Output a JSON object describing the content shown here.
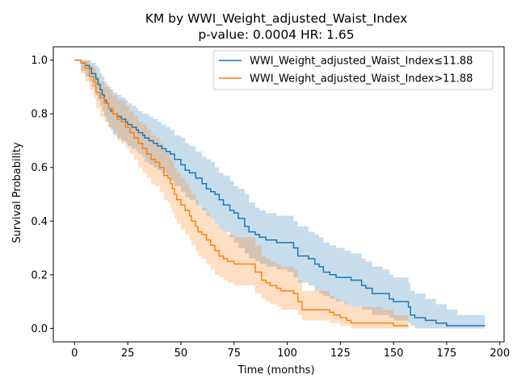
{
  "chart_data": {
    "type": "line",
    "title": "KM by WWI_Weight_adjusted_Waist_Index",
    "subtitle": "p-value: 0.0004  HR: 1.65",
    "xlabel": "Time (months)",
    "ylabel": "Survival Probability",
    "xlim": [
      -10,
      202
    ],
    "ylim": [
      -0.05,
      1.05
    ],
    "xticks": [
      0,
      25,
      50,
      75,
      100,
      125,
      150,
      175,
      200
    ],
    "yticks": [
      0.0,
      0.2,
      0.4,
      0.6,
      0.8,
      1.0
    ],
    "xtick_labels": [
      "0",
      "25",
      "50",
      "75",
      "100",
      "125",
      "150",
      "175",
      "200"
    ],
    "ytick_labels": [
      "0.0",
      "0.2",
      "0.4",
      "0.6",
      "0.8",
      "1.0"
    ],
    "grid": false,
    "legend_position": "top-right",
    "series": [
      {
        "name": "WWI_Weight_adjusted_Waist_Index≤11.88",
        "color": "#1f77b4",
        "step": true,
        "x": [
          0,
          3,
          5,
          7,
          8,
          10,
          11,
          12,
          13,
          14,
          15,
          16,
          17,
          18,
          20,
          22,
          24,
          25,
          27,
          29,
          30,
          32,
          33,
          35,
          37,
          39,
          41,
          43,
          45,
          47,
          50,
          52,
          54,
          57,
          60,
          62,
          64,
          66,
          68,
          70,
          73,
          75,
          77,
          80,
          82,
          85,
          87,
          90,
          93,
          95,
          97,
          100,
          103,
          105,
          107,
          110,
          113,
          115,
          117,
          120,
          123,
          125,
          127,
          130,
          135,
          137,
          140,
          145,
          148,
          150,
          155,
          157,
          158,
          160,
          165,
          170,
          175,
          180,
          185,
          190,
          193
        ],
        "y": [
          1.0,
          0.99,
          0.98,
          0.97,
          0.95,
          0.93,
          0.91,
          0.89,
          0.87,
          0.85,
          0.84,
          0.82,
          0.81,
          0.8,
          0.79,
          0.78,
          0.77,
          0.76,
          0.75,
          0.74,
          0.73,
          0.72,
          0.71,
          0.7,
          0.69,
          0.68,
          0.67,
          0.66,
          0.65,
          0.63,
          0.61,
          0.59,
          0.58,
          0.56,
          0.54,
          0.52,
          0.51,
          0.5,
          0.48,
          0.46,
          0.44,
          0.43,
          0.41,
          0.38,
          0.36,
          0.35,
          0.34,
          0.33,
          0.33,
          0.32,
          0.32,
          0.32,
          0.3,
          0.27,
          0.27,
          0.26,
          0.24,
          0.23,
          0.21,
          0.2,
          0.19,
          0.19,
          0.19,
          0.18,
          0.16,
          0.15,
          0.13,
          0.13,
          0.11,
          0.1,
          0.1,
          0.08,
          0.05,
          0.04,
          0.03,
          0.02,
          0.01,
          0.01,
          0.01,
          0.01,
          0.01
        ],
        "ci_lower": [
          1.0,
          0.96,
          0.94,
          0.92,
          0.9,
          0.87,
          0.85,
          0.83,
          0.81,
          0.79,
          0.77,
          0.75,
          0.74,
          0.72,
          0.71,
          0.7,
          0.69,
          0.68,
          0.67,
          0.66,
          0.65,
          0.64,
          0.62,
          0.61,
          0.6,
          0.59,
          0.58,
          0.57,
          0.55,
          0.53,
          0.51,
          0.49,
          0.48,
          0.46,
          0.44,
          0.42,
          0.41,
          0.39,
          0.37,
          0.36,
          0.34,
          0.32,
          0.3,
          0.28,
          0.26,
          0.25,
          0.24,
          0.23,
          0.23,
          0.22,
          0.22,
          0.21,
          0.19,
          0.17,
          0.17,
          0.16,
          0.14,
          0.13,
          0.12,
          0.11,
          0.1,
          0.1,
          0.09,
          0.08,
          0.07,
          0.07,
          0.05,
          0.05,
          0.04,
          0.03,
          0.03,
          0.02,
          0.01,
          0.0,
          0.0,
          0.0,
          0.0,
          0.0,
          0.0,
          0.0,
          0.0
        ],
        "ci_upper": [
          1.0,
          1.0,
          1.0,
          1.0,
          0.99,
          0.98,
          0.97,
          0.95,
          0.94,
          0.92,
          0.91,
          0.9,
          0.89,
          0.88,
          0.87,
          0.86,
          0.85,
          0.84,
          0.83,
          0.82,
          0.81,
          0.8,
          0.8,
          0.79,
          0.78,
          0.77,
          0.76,
          0.75,
          0.74,
          0.72,
          0.71,
          0.69,
          0.68,
          0.66,
          0.64,
          0.63,
          0.62,
          0.6,
          0.58,
          0.57,
          0.55,
          0.53,
          0.52,
          0.5,
          0.47,
          0.45,
          0.44,
          0.43,
          0.43,
          0.42,
          0.42,
          0.42,
          0.4,
          0.38,
          0.38,
          0.36,
          0.35,
          0.34,
          0.32,
          0.31,
          0.3,
          0.3,
          0.29,
          0.28,
          0.26,
          0.25,
          0.23,
          0.22,
          0.2,
          0.19,
          0.19,
          0.17,
          0.14,
          0.13,
          0.11,
          0.09,
          0.07,
          0.05,
          0.05,
          0.05,
          0.05
        ]
      },
      {
        "name": "WWI_Weight_adjusted_Waist_Index>11.88",
        "color": "#ff7f0e",
        "step": true,
        "x": [
          0,
          3,
          5,
          7,
          9,
          10,
          12,
          14,
          16,
          18,
          20,
          22,
          24,
          26,
          28,
          30,
          32,
          34,
          36,
          38,
          40,
          42,
          44,
          45,
          46,
          47,
          48,
          50,
          52,
          54,
          55,
          57,
          58,
          60,
          62,
          64,
          66,
          68,
          70,
          72,
          75,
          80,
          85,
          88,
          90,
          92,
          95,
          97,
          100,
          103,
          105,
          107,
          110,
          115,
          120,
          122,
          125,
          128,
          130,
          135,
          140,
          145,
          150,
          153,
          157
        ],
        "y": [
          1.0,
          0.99,
          0.97,
          0.94,
          0.92,
          0.88,
          0.86,
          0.84,
          0.82,
          0.8,
          0.78,
          0.77,
          0.75,
          0.73,
          0.71,
          0.69,
          0.67,
          0.65,
          0.63,
          0.62,
          0.6,
          0.57,
          0.56,
          0.54,
          0.52,
          0.5,
          0.48,
          0.46,
          0.44,
          0.42,
          0.4,
          0.38,
          0.36,
          0.35,
          0.33,
          0.31,
          0.29,
          0.27,
          0.26,
          0.25,
          0.24,
          0.24,
          0.21,
          0.18,
          0.17,
          0.16,
          0.15,
          0.14,
          0.14,
          0.13,
          0.1,
          0.07,
          0.07,
          0.07,
          0.06,
          0.05,
          0.04,
          0.03,
          0.02,
          0.02,
          0.02,
          0.02,
          0.01,
          0.01,
          0.01
        ],
        "ci_lower": [
          1.0,
          0.95,
          0.92,
          0.89,
          0.86,
          0.82,
          0.79,
          0.77,
          0.75,
          0.73,
          0.7,
          0.69,
          0.67,
          0.65,
          0.63,
          0.6,
          0.58,
          0.56,
          0.54,
          0.53,
          0.51,
          0.48,
          0.47,
          0.45,
          0.43,
          0.41,
          0.39,
          0.37,
          0.35,
          0.33,
          0.31,
          0.29,
          0.27,
          0.26,
          0.24,
          0.22,
          0.2,
          0.19,
          0.18,
          0.17,
          0.16,
          0.16,
          0.13,
          0.11,
          0.1,
          0.09,
          0.08,
          0.07,
          0.07,
          0.07,
          0.05,
          0.03,
          0.03,
          0.03,
          0.02,
          0.02,
          0.01,
          0.01,
          0.0,
          0.0,
          0.0,
          0.0,
          0.0,
          0.0,
          0.0
        ],
        "ci_upper": [
          1.0,
          1.0,
          1.0,
          0.98,
          0.97,
          0.94,
          0.92,
          0.9,
          0.89,
          0.87,
          0.85,
          0.85,
          0.83,
          0.81,
          0.79,
          0.77,
          0.76,
          0.74,
          0.72,
          0.71,
          0.69,
          0.66,
          0.65,
          0.63,
          0.62,
          0.6,
          0.58,
          0.56,
          0.54,
          0.52,
          0.5,
          0.48,
          0.46,
          0.45,
          0.43,
          0.41,
          0.39,
          0.37,
          0.36,
          0.35,
          0.34,
          0.34,
          0.31,
          0.27,
          0.26,
          0.25,
          0.24,
          0.23,
          0.23,
          0.22,
          0.18,
          0.14,
          0.14,
          0.14,
          0.12,
          0.11,
          0.1,
          0.09,
          0.08,
          0.08,
          0.08,
          0.07,
          0.05,
          0.05,
          0.05
        ]
      }
    ]
  }
}
